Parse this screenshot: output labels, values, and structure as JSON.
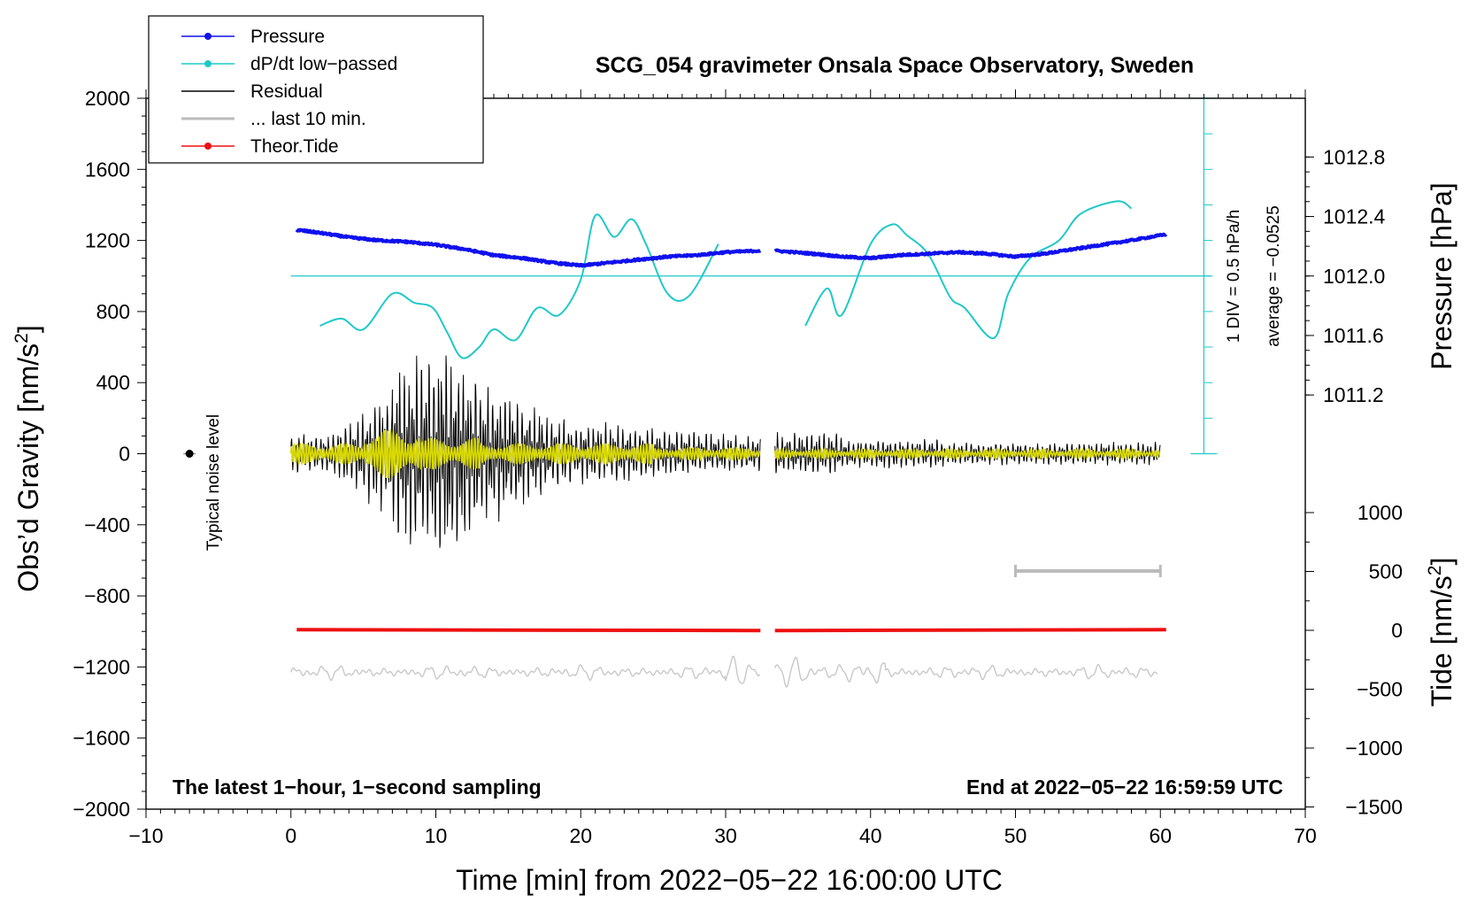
{
  "chart_data": {
    "type": "line",
    "title": "SCG_054 gravimeter Onsala Space Observatory, Sweden",
    "xlabel": "Time [min] from 2022−05−22 16:00:00 UTC",
    "ylabel_left_pre": "Obs’d Gravity [nm/s",
    "ylabel_left_sup": "2",
    "ylabel_left_post": "]",
    "ylabel_right_pressure": "Pressure [hPa]",
    "ylabel_right_tide_pre": "Tide [nm/s",
    "ylabel_right_tide_sup": "2",
    "ylabel_right_tide_post": "]",
    "xlim": [
      -10,
      70
    ],
    "ylim_gravity": [
      -2000,
      2000
    ],
    "ylim_pressure_ticks": [
      1011.2,
      1011.6,
      1012.0,
      1012.4,
      1012.8
    ],
    "ylim_tide_ticks": [
      -1500,
      -1000,
      -500,
      0,
      500,
      1000
    ],
    "x_ticks": [
      -10,
      0,
      10,
      20,
      30,
      40,
      50,
      60,
      70
    ],
    "x_tick_labels": [
      "−10",
      "0",
      "10",
      "20",
      "30",
      "40",
      "50",
      "60",
      "70"
    ],
    "y_ticks": [
      -2000,
      -1600,
      -1200,
      -800,
      -400,
      0,
      400,
      800,
      1200,
      1600,
      2000
    ],
    "y_tick_labels": [
      "−2000",
      "−1600",
      "−1200",
      "−800",
      "−400",
      "0",
      "400",
      "800",
      "1200",
      "1600",
      "2000"
    ],
    "pressure_tick_labels": [
      "1011.2",
      "1011.6",
      "1012.0",
      "1012.4",
      "1012.8"
    ],
    "tide_tick_labels": [
      "−1500",
      "−1000",
      "−500",
      "0",
      "500",
      "1000"
    ],
    "legend": [
      {
        "label": "Pressure",
        "color": "#1010ee",
        "marker": true
      },
      {
        "label": "dP/dt low−passed",
        "color": "#20c8c8",
        "marker": true
      },
      {
        "label": "Residual",
        "color": "#000000",
        "marker": false
      },
      {
        "label": "... last 10 min.",
        "color": "#bbbbbb",
        "marker": false
      },
      {
        "label": "Theor.Tide",
        "color": "#ee1010",
        "marker": true
      }
    ],
    "series": {
      "pressure_hpa": {
        "name": "Pressure",
        "color": "#1010ee",
        "segments": [
          {
            "x": [
              0.4,
              2,
              4,
              6,
              8,
              10,
              12,
              14,
              16,
              18,
              20,
              22,
              24,
              26,
              28,
              30,
              32.4
            ],
            "y": [
              1012.31,
              1012.29,
              1012.26,
              1012.24,
              1012.23,
              1012.21,
              1012.18,
              1012.14,
              1012.12,
              1012.09,
              1012.07,
              1012.09,
              1012.11,
              1012.13,
              1012.14,
              1012.16,
              1012.17
            ]
          },
          {
            "x": [
              33.4,
              36,
              38,
              40,
              42,
              44,
              46,
              48,
              50,
              52,
              54,
              56,
              58,
              60.4
            ],
            "y": [
              1012.17,
              1012.15,
              1012.13,
              1012.12,
              1012.14,
              1012.15,
              1012.16,
              1012.15,
              1012.13,
              1012.15,
              1012.18,
              1012.21,
              1012.24,
              1012.28
            ]
          }
        ]
      },
      "dpdt_lowpassed": {
        "name": "dP/dt low−passed",
        "color": "#20c8c8",
        "reference_line_value": 1000,
        "segments": [
          {
            "x": [
              2,
              3.5,
              5,
              7,
              8.5,
              9.8,
              10.8,
              11.8,
              13,
              14,
              15.5,
              17,
              18.5,
              20,
              21,
              22.3,
              23.5,
              24.5,
              26,
              27.5,
              29.5
            ],
            "y": [
              720,
              760,
              700,
              900,
              850,
              820,
              680,
              540,
              600,
              700,
              640,
              820,
              780,
              980,
              1340,
              1220,
              1320,
              1180,
              900,
              890,
              1180
            ]
          },
          {
            "x": [
              35.5,
              37,
              38,
              40,
              41.5,
              42.5,
              44,
              45.5,
              46.5,
              48.5,
              49.5,
              51,
              53,
              54.5,
              57,
              58
            ],
            "y": [
              720,
              930,
              780,
              1180,
              1290,
              1230,
              1120,
              880,
              820,
              650,
              900,
              1100,
              1200,
              1350,
              1420,
              1380
            ]
          }
        ]
      },
      "residual": {
        "name": "Residual",
        "color": "#000000",
        "description_values": "oscillating around 0"
      },
      "last_10_min": {
        "name": "... last 10 min.",
        "color": "#bbbbbb",
        "x_range": [
          50,
          60
        ],
        "y_value": -660
      },
      "theor_tide": {
        "name": "Theor.Tide",
        "color": "#ee1010",
        "y_value": -990
      },
      "filtered_residual": {
        "color": "#d8d800"
      },
      "lower_trace": {
        "color": "#c8c8c8",
        "y_offset": -1230
      }
    },
    "noise_marker": {
      "x": -7,
      "y": 0,
      "label": "Typical noise level"
    },
    "annotations": {
      "left_bottom": "The latest 1−hour, 1−second sampling",
      "right_bottom": "End at 2022−05−22 16:59:59 UTC",
      "div_scale": "1 DIV = 0.5 hPa/h",
      "average": "average = −0.0525"
    }
  }
}
